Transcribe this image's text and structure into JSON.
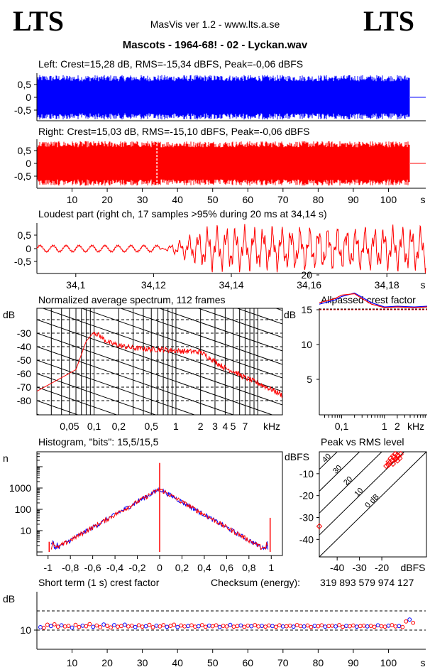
{
  "header": {
    "logo_left": "LTS",
    "logo_right": "LTS",
    "app_title": "MasVis ver 1.2 - www.lts.a.se",
    "file_title": "Mascots - 1964-68! - 02 - Lyckan.wav"
  },
  "colors": {
    "left_channel": "#0000ff",
    "right_channel": "#ff0000"
  },
  "chart_data": [
    {
      "type": "area",
      "title": "Left: Crest=15,28 dB, RMS=-15,34 dBFS, Peak=-0,06 dBFS",
      "ylim": [
        -1,
        1
      ],
      "y_ticks": [
        "0,5",
        "0",
        "-0,5"
      ],
      "duration_s": 107.5,
      "series": [
        {
          "name": "Left",
          "envelope": 0.95
        }
      ]
    },
    {
      "type": "area",
      "title": "Right: Crest=15,03 dB, RMS=-15,10 dBFS, Peak=-0,06 dBFS",
      "ylim": [
        -1,
        1
      ],
      "y_ticks": [
        "0,5",
        "0",
        "-0,5"
      ],
      "x_ticks": [
        "10",
        "20",
        "30",
        "40",
        "50",
        "60",
        "70",
        "80",
        "90",
        "100"
      ],
      "x_unit": "s",
      "marker_s": 34.14,
      "series": [
        {
          "name": "Right",
          "envelope": 0.95
        }
      ]
    },
    {
      "type": "line",
      "title": "Loudest part (right ch, 17 samples >95% during 20 ms at 34,14 s)",
      "xlim": [
        34.09,
        34.19
      ],
      "ylim": [
        -1,
        1
      ],
      "y_ticks": [
        "0,5",
        "0",
        "-0,5"
      ],
      "x_ticks": [
        "34,1",
        "34,12",
        "34,14",
        "34,16",
        "34,18"
      ],
      "x_unit": "s"
    },
    {
      "type": "line",
      "title": "Normalized average spectrum, 112 frames",
      "ylabel": "dB",
      "xlabel": "kHz",
      "y_ticks": [
        "-30",
        "-40",
        "-50",
        "-60",
        "-70",
        "-80"
      ],
      "x_ticks": [
        "0,05",
        "0,1",
        "0,2",
        "0,5",
        "1",
        "2",
        "3",
        "4",
        "5",
        "7"
      ],
      "x_khz": [
        0.02,
        0.04,
        0.06,
        0.08,
        0.1,
        0.15,
        0.2,
        0.3,
        0.5,
        0.7,
        1,
        2,
        3,
        4,
        5,
        7,
        10,
        15,
        20
      ],
      "y_db": [
        -73,
        -63,
        -57,
        -36,
        -29,
        -37,
        -39,
        -41,
        -42,
        -42,
        -43,
        -44,
        -51,
        -56,
        -58,
        -63,
        -67,
        -72,
        -76
      ]
    },
    {
      "type": "line",
      "title": "Allpassed crest factor",
      "ylabel": "dB",
      "xlabel": "kHz",
      "ylim": [
        0,
        25
      ],
      "y_ticks": [
        "20",
        "15",
        "10",
        "5"
      ],
      "x_ticks": [
        "0,1",
        "1",
        "2"
      ],
      "x_khz": [
        0.03,
        0.07,
        0.1,
        0.2,
        0.3,
        0.5,
        1,
        2,
        5,
        10
      ],
      "series": [
        {
          "name": "Left",
          "values": [
            15.8,
            16.4,
            16.9,
            17.4,
            16.8,
            16.0,
            15.4,
            15.5,
            15.4,
            15.5
          ]
        },
        {
          "name": "Right",
          "values": [
            16.0,
            16.6,
            17.1,
            17.3,
            16.6,
            15.8,
            15.3,
            15.4,
            15.3,
            15.4
          ]
        }
      ],
      "reference_db": 15.1
    },
    {
      "type": "line",
      "title": "Histogram, \"bits\": 15,5/15,5",
      "ylabel": "n",
      "xlim": [
        -1.1,
        1.1
      ],
      "y_ticks": [
        "1000",
        "100",
        "10"
      ],
      "x_ticks": [
        "-1",
        "-0,8",
        "-0,6",
        "-0,4",
        "-0,2",
        "0",
        "0,2",
        "0,4",
        "0,6",
        "0,8",
        "1"
      ],
      "x": [
        -0.95,
        -0.8,
        -0.6,
        -0.4,
        -0.2,
        0,
        0.2,
        0.4,
        0.6,
        0.8,
        0.95
      ],
      "counts": [
        2,
        10,
        40,
        180,
        500,
        900,
        500,
        180,
        40,
        10,
        2
      ],
      "clip_spikes": [
        {
          "x": 0,
          "count": 15000
        },
        {
          "x": -0.99,
          "count": 3
        },
        {
          "x": 0.99,
          "count": 40
        }
      ]
    },
    {
      "type": "scatter",
      "title": "Peak vs RMS level",
      "ylabel": "dBFS",
      "xlabel": "dBFS",
      "xlim": [
        -50,
        0
      ],
      "ylim": [
        -50,
        0
      ],
      "y_ticks": [
        "-10",
        "-20",
        "-30",
        "-40"
      ],
      "x_ticks": [
        "-40",
        "-30",
        "-20"
      ],
      "diagonal_labels": [
        "40",
        "30",
        "20",
        "10",
        "0 dB"
      ],
      "points": [
        {
          "rms": -15,
          "peak": -2
        },
        {
          "rms": -14,
          "peak": -1
        },
        {
          "rms": -13,
          "peak": -1.5
        },
        {
          "rms": -16,
          "peak": -3
        },
        {
          "rms": -15.5,
          "peak": -4
        },
        {
          "rms": -14.5,
          "peak": -2.5
        },
        {
          "rms": -13.5,
          "peak": -3
        },
        {
          "rms": -12.5,
          "peak": -2
        },
        {
          "rms": -17,
          "peak": -4.5
        },
        {
          "rms": -16.5,
          "peak": -5
        },
        {
          "rms": -14,
          "peak": -3.5
        },
        {
          "rms": -15,
          "peak": -5.5
        },
        {
          "rms": -13,
          "peak": -4
        },
        {
          "rms": -12,
          "peak": -3
        },
        {
          "rms": -11.5,
          "peak": -1
        },
        {
          "rms": -17,
          "peak": -6
        },
        {
          "rms": -18,
          "peak": -6.5
        },
        {
          "rms": -48,
          "peak": -34
        }
      ]
    },
    {
      "type": "scatter",
      "title": "Short term (1 s) crest factor",
      "checksum_label": "Checksum (energy):",
      "checksum_value": "319 893 579 974 127",
      "ylabel": "dB",
      "y_ticks": [
        "10"
      ],
      "x_ticks": [
        "10",
        "20",
        "30",
        "40",
        "50",
        "60",
        "70",
        "80",
        "90",
        "100"
      ],
      "x_unit": "s",
      "ylim": [
        5,
        20
      ],
      "crest_db": [
        11.5,
        11.2,
        12.8,
        12.1,
        13.0,
        11.8,
        12.5,
        11.9,
        12.2,
        11.3,
        12.7,
        11.6,
        12.3,
        12.0,
        13.1,
        11.7,
        12.4,
        11.5,
        12.9,
        12.2,
        11.4,
        12.6,
        11.8,
        12.1,
        12.8,
        11.9,
        12.3,
        11.6,
        12.5,
        11.8,
        12.0,
        12.7,
        11.5,
        12.3,
        11.9,
        12.6,
        11.7,
        12.2,
        12.8,
        11.6,
        12.4,
        11.9,
        12.1,
        12.5,
        11.8,
        12.0,
        12.6,
        11.7,
        12.3,
        12.0,
        12.5,
        11.6,
        12.2,
        11.9,
        12.7,
        11.8,
        12.1,
        12.4,
        11.7,
        12.3,
        12.0,
        12.6,
        11.9,
        12.2,
        11.8,
        12.4,
        12.1,
        11.7,
        12.5,
        11.9,
        12.0,
        12.3,
        11.8,
        12.6,
        12.1,
        11.9,
        12.4,
        11.6,
        12.2,
        12.0,
        12.5,
        11.8,
        12.1,
        12.3,
        11.9,
        12.6,
        11.7,
        12.2,
        12.0,
        12.4,
        11.8,
        12.1,
        12.3,
        11.9,
        12.2,
        11.7,
        12.5,
        12.0,
        11.8,
        12.3,
        12.6,
        11.9,
        12.1,
        11.6,
        14.5,
        15.5,
        13.8
      ]
    }
  ]
}
